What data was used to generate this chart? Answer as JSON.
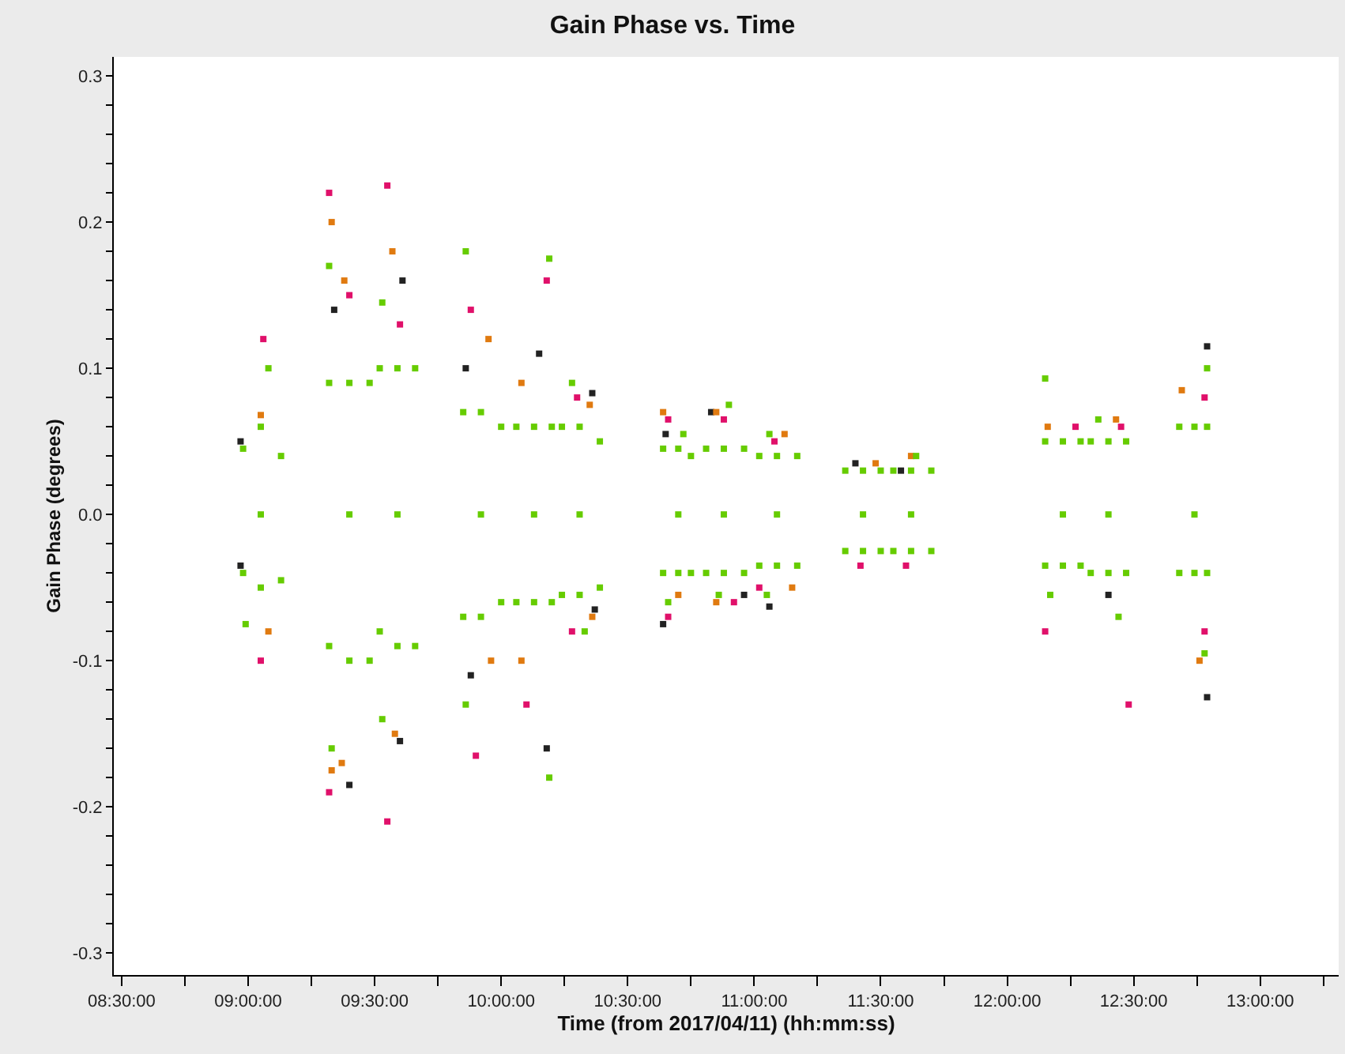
{
  "chart_data": {
    "type": "scatter",
    "title": "Gain Phase vs. Time",
    "xlabel": "Time (from 2017/04/11) (hh:mm:ss)",
    "ylabel": "Gain Phase (degrees)",
    "xlim": [
      8.469,
      13.31
    ],
    "ylim": [
      -0.315,
      0.313
    ],
    "xticks": [
      {
        "value": 8.5,
        "label": "08:30:00"
      },
      {
        "value": 8.75,
        "label": null
      },
      {
        "value": 9,
        "label": "09:00:00"
      },
      {
        "value": 9.25,
        "label": null
      },
      {
        "value": 9.5,
        "label": "09:30:00"
      },
      {
        "value": 9.75,
        "label": null
      },
      {
        "value": 10,
        "label": "10:00:00"
      },
      {
        "value": 10.25,
        "label": null
      },
      {
        "value": 10.5,
        "label": "10:30:00"
      },
      {
        "value": 10.75,
        "label": null
      },
      {
        "value": 11,
        "label": "11:00:00"
      },
      {
        "value": 11.25,
        "label": null
      },
      {
        "value": 11.5,
        "label": "11:30:00"
      },
      {
        "value": 11.75,
        "label": null
      },
      {
        "value": 12,
        "label": "12:00:00"
      },
      {
        "value": 12.25,
        "label": null
      },
      {
        "value": 12.5,
        "label": "12:30:00"
      },
      {
        "value": 12.75,
        "label": null
      },
      {
        "value": 13,
        "label": "13:00:00"
      },
      {
        "value": 13.25,
        "label": null
      }
    ],
    "yticks": [
      -0.3,
      {
        "value": -0.28,
        "label": null
      },
      {
        "value": -0.26,
        "label": null
      },
      {
        "value": -0.24,
        "label": null
      },
      {
        "value": -0.22,
        "label": null
      },
      -0.2,
      {
        "value": -0.18,
        "label": null
      },
      {
        "value": -0.16,
        "label": null
      },
      {
        "value": -0.14,
        "label": null
      },
      {
        "value": -0.12,
        "label": null
      },
      -0.1,
      {
        "value": -0.08,
        "label": null
      },
      {
        "value": -0.06,
        "label": null
      },
      {
        "value": -0.04,
        "label": null
      },
      {
        "value": -0.02,
        "label": null
      },
      {
        "value": 0,
        "label": "0.0"
      },
      {
        "value": 0.02,
        "label": null
      },
      {
        "value": 0.04,
        "label": null
      },
      {
        "value": 0.06,
        "label": null
      },
      {
        "value": 0.08,
        "label": null
      },
      0.1,
      {
        "value": 0.12,
        "label": null
      },
      {
        "value": 0.14,
        "label": null
      },
      {
        "value": 0.16,
        "label": null
      },
      {
        "value": 0.18,
        "label": null
      },
      0.2,
      {
        "value": 0.22,
        "label": null
      },
      {
        "value": 0.24,
        "label": null
      },
      {
        "value": 0.26,
        "label": null
      },
      {
        "value": 0.28,
        "label": null
      },
      0.3
    ],
    "marker": "square",
    "series": [
      {
        "color": "#222222",
        "x": [
          9.34,
          9.4,
          9.61,
          9.6,
          9.86,
          9.88,
          10.15,
          10.18,
          10.36,
          10.37,
          10.64,
          10.65,
          10.83,
          10.96,
          11.06,
          11.4,
          11.58,
          12.4,
          12.79,
          12.79,
          8.97,
          8.97
        ],
        "values": [
          0.14,
          -0.185,
          0.16,
          -0.155,
          0.1,
          -0.11,
          0.11,
          -0.16,
          0.083,
          -0.065,
          -0.075,
          0.055,
          0.07,
          -0.055,
          -0.063,
          0.035,
          0.03,
          -0.055,
          0.115,
          -0.125,
          -0.035,
          0.05
        ]
      },
      {
        "color": "#e0106a",
        "x": [
          9.06,
          9.05,
          9.32,
          9.32,
          9.4,
          9.55,
          9.55,
          9.6,
          9.88,
          9.9,
          10.18,
          10.1,
          10.3,
          10.28,
          10.66,
          10.66,
          10.88,
          10.92,
          11.08,
          11.02,
          11.42,
          11.6,
          12.15,
          12.27,
          12.48,
          12.45,
          12.78,
          12.78
        ],
        "values": [
          0.12,
          -0.1,
          0.22,
          -0.19,
          0.15,
          0.225,
          -0.21,
          0.13,
          0.14,
          -0.165,
          0.16,
          -0.13,
          0.08,
          -0.08,
          0.065,
          -0.07,
          0.065,
          -0.06,
          0.05,
          -0.05,
          -0.035,
          -0.035,
          -0.08,
          0.06,
          -0.13,
          0.06,
          0.08,
          -0.08
        ]
      },
      {
        "color": "#e07a10",
        "x": [
          9.33,
          9.33,
          9.38,
          9.37,
          9.57,
          9.58,
          9.95,
          9.96,
          10.08,
          10.08,
          10.35,
          10.36,
          10.64,
          10.7,
          10.85,
          10.85,
          11.12,
          11.15,
          11.48,
          11.62,
          12.16,
          12.43,
          12.69,
          12.76,
          9.05,
          9.08
        ],
        "values": [
          0.2,
          -0.175,
          0.16,
          -0.17,
          0.18,
          -0.15,
          0.12,
          -0.1,
          0.09,
          -0.1,
          0.075,
          -0.07,
          0.07,
          -0.055,
          0.07,
          -0.06,
          0.055,
          -0.05,
          0.035,
          0.04,
          0.06,
          0.065,
          0.085,
          -0.1,
          0.068,
          -0.08
        ]
      },
      {
        "color": "#66cc00",
        "x": [
          8.98,
          9.05,
          9.13,
          8.98,
          9.05,
          9.13,
          9.05,
          9.08,
          8.99,
          9.32,
          9.4,
          9.48,
          9.32,
          9.4,
          9.48,
          9.4,
          9.32,
          9.33,
          9.52,
          9.59,
          9.66,
          9.52,
          9.59,
          9.66,
          9.59,
          9.53,
          9.53,
          9.85,
          9.92,
          10.0,
          9.85,
          9.92,
          10.0,
          9.92,
          9.86,
          9.86,
          10.06,
          10.13,
          10.2,
          10.06,
          10.13,
          10.2,
          10.13,
          10.19,
          10.19,
          10.24,
          10.31,
          10.39,
          10.24,
          10.31,
          10.39,
          10.31,
          10.28,
          10.33,
          10.64,
          10.7,
          10.75,
          10.64,
          10.7,
          10.75,
          10.7,
          10.72,
          10.66,
          10.81,
          10.88,
          10.96,
          10.81,
          10.88,
          10.96,
          10.88,
          10.9,
          10.86,
          11.02,
          11.09,
          11.17,
          11.02,
          11.09,
          11.17,
          11.09,
          11.06,
          11.05,
          11.36,
          11.43,
          11.5,
          11.36,
          11.43,
          11.5,
          11.43,
          11.55,
          11.62,
          11.7,
          11.55,
          11.62,
          11.7,
          11.62,
          11.64,
          12.15,
          12.22,
          12.29,
          12.15,
          12.22,
          12.29,
          12.22,
          12.15,
          12.17,
          12.33,
          12.4,
          12.47,
          12.33,
          12.4,
          12.47,
          12.4,
          12.36,
          12.44,
          12.68,
          12.74,
          12.79,
          12.68,
          12.74,
          12.79,
          12.74,
          12.79,
          12.78
        ],
        "values": [
          0.045,
          0.06,
          0.04,
          -0.04,
          -0.05,
          -0.045,
          0,
          0.1,
          -0.075,
          0.09,
          0.09,
          0.09,
          -0.09,
          -0.1,
          -0.1,
          0,
          0.17,
          -0.16,
          0.1,
          0.1,
          0.1,
          -0.08,
          -0.09,
          -0.09,
          0,
          0.145,
          -0.14,
          0.07,
          0.07,
          0.06,
          -0.07,
          -0.07,
          -0.06,
          0,
          0.18,
          -0.13,
          0.06,
          0.06,
          0.06,
          -0.06,
          -0.06,
          -0.06,
          0,
          0.175,
          -0.18,
          0.06,
          0.06,
          0.05,
          -0.055,
          -0.055,
          -0.05,
          0,
          0.09,
          -0.08,
          0.045,
          0.045,
          0.04,
          -0.04,
          -0.04,
          -0.04,
          0,
          0.055,
          -0.06,
          0.045,
          0.045,
          0.045,
          -0.04,
          -0.04,
          -0.04,
          0,
          0.075,
          -0.055,
          0.04,
          0.04,
          0.04,
          -0.035,
          -0.035,
          -0.035,
          0,
          0.055,
          -0.055,
          0.03,
          0.03,
          0.03,
          -0.025,
          -0.025,
          -0.025,
          0,
          0.03,
          0.03,
          0.03,
          -0.025,
          -0.025,
          -0.025,
          0,
          0.04,
          0.05,
          0.05,
          0.05,
          -0.035,
          -0.035,
          -0.035,
          0,
          0.093,
          -0.055,
          0.05,
          0.05,
          0.05,
          -0.04,
          -0.04,
          -0.04,
          0,
          0.065,
          -0.07,
          0.06,
          0.06,
          0.06,
          -0.04,
          -0.04,
          -0.04,
          0,
          0.1,
          -0.095
        ]
      }
    ]
  }
}
